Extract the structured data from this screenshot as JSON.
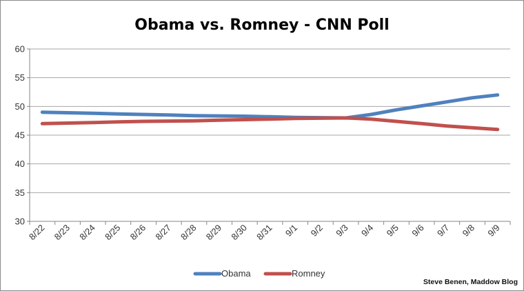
{
  "chart_data": {
    "type": "line",
    "title": "Obama vs. Romney - CNN Poll",
    "xlabel": "",
    "ylabel": "",
    "categories": [
      "8/22",
      "8/23",
      "8/24",
      "8/25",
      "8/26",
      "8/27",
      "8/28",
      "8/29",
      "8/30",
      "8/31",
      "9/1",
      "9/2",
      "9/3",
      "9/4",
      "9/5",
      "9/6",
      "9/7",
      "9/8",
      "9/9"
    ],
    "ylim": [
      30,
      60
    ],
    "yticks": [
      30,
      35,
      40,
      45,
      50,
      55,
      60
    ],
    "grid": true,
    "legend_position": "bottom",
    "series": [
      {
        "name": "Obama",
        "color": "#4f81bd",
        "values": [
          49,
          48.9,
          48.8,
          48.7,
          48.6,
          48.5,
          48.4,
          48.35,
          48.3,
          48.2,
          48.1,
          48.05,
          48,
          48.6,
          49.4,
          50.1,
          50.8,
          51.5,
          52
        ]
      },
      {
        "name": "Romney",
        "color": "#c0504d",
        "values": [
          47,
          47.1,
          47.2,
          47.3,
          47.4,
          47.45,
          47.5,
          47.6,
          47.7,
          47.8,
          47.9,
          47.95,
          48,
          47.8,
          47.4,
          47,
          46.6,
          46.3,
          46
        ]
      }
    ],
    "credit": "Steve Benen, Maddow Blog"
  }
}
